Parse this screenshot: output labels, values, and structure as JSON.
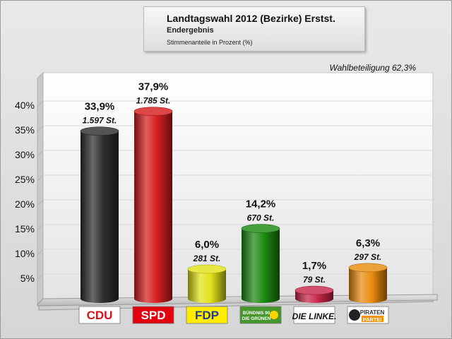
{
  "header": {
    "title": "Landtagswahl 2012 (Bezirke) Erstst.",
    "subtitle": "Endergebnis",
    "note": "Stimmenanteile in Prozent (%)"
  },
  "turnout_label": "Wahlbeteiligung 62,3%",
  "chart_data": {
    "type": "bar",
    "title": "Landtagswahl 2012 (Bezirke) Erstst.",
    "subtitle": "Endergebnis",
    "ylabel": "Stimmenanteile in Prozent (%)",
    "ylim": [
      0,
      40
    ],
    "yticks": [
      5,
      10,
      15,
      20,
      25,
      30,
      35,
      40
    ],
    "ytick_labels": [
      "5%",
      "10%",
      "15%",
      "20%",
      "25%",
      "30%",
      "35%",
      "40%"
    ],
    "categories": [
      "CDU",
      "SPD",
      "FDP",
      "BÜNDNIS 90 DIE GRÜNEN",
      "DIE LINKE.",
      "PIRATEN PARTEI"
    ],
    "values": [
      33.9,
      37.9,
      6.0,
      14.2,
      1.7,
      6.3
    ],
    "value_labels": [
      "33,9%",
      "37,9%",
      "6,0%",
      "14,2%",
      "1,7%",
      "6,3%"
    ],
    "votes": [
      1597,
      1785,
      281,
      670,
      79,
      297
    ],
    "vote_labels": [
      "1.597 St.",
      "1.785 St.",
      "281 St.",
      "670 St.",
      "79 St.",
      "297 St."
    ],
    "colors": [
      "#2e2e2e",
      "#d61f1f",
      "#e2e21a",
      "#1c8a12",
      "#c8284a",
      "#e98c10"
    ],
    "grid": true,
    "legend": "none"
  },
  "logos": [
    {
      "text": "CDU",
      "bg": "#ffffff",
      "fg": "#d4131b"
    },
    {
      "text": "SPD",
      "bg": "#e3000f",
      "fg": "#ffffff"
    },
    {
      "text": "FDP",
      "bg": "#ffec00",
      "fg": "#1d3c8f"
    },
    {
      "line1": "BÜNDNIS 90",
      "line2": "DIE GRÜNEN",
      "bg": "#46962b",
      "fg": "#ffffff"
    },
    {
      "text": "DIE LINKE.",
      "bg": "#ffffff",
      "fg": "#111111"
    },
    {
      "line1": "PIRATEN",
      "line2": "PARTEI",
      "bg": "#ffffff",
      "fg": "#333333",
      "accent": "#f39200"
    }
  ]
}
